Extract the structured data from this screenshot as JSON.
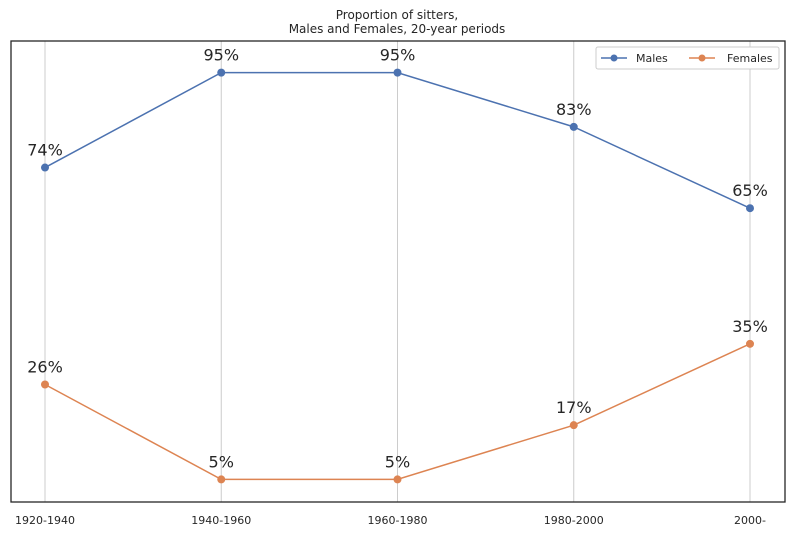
{
  "chart_data": {
    "type": "line",
    "title": "Proportion of sitters,",
    "subtitle": "Males and Females, 20-year periods",
    "xlabel": "",
    "ylabel": "",
    "categories": [
      "1920-1940",
      "1940-1960",
      "1960-1980",
      "1980-2000",
      "2000-"
    ],
    "ylim": [
      0,
      1.02
    ],
    "grid": "vertical",
    "legend_position": "top-right",
    "series": [
      {
        "name": "Males",
        "color": "#4c72b0",
        "values": [
          0.74,
          0.95,
          0.95,
          0.83,
          0.65
        ],
        "labels": [
          "74%",
          "95%",
          "95%",
          "83%",
          "65%"
        ]
      },
      {
        "name": "Females",
        "color": "#dd8452",
        "values": [
          0.26,
          0.05,
          0.05,
          0.17,
          0.35
        ],
        "labels": [
          "26%",
          "5%",
          "5%",
          "17%",
          "35%"
        ]
      }
    ]
  }
}
